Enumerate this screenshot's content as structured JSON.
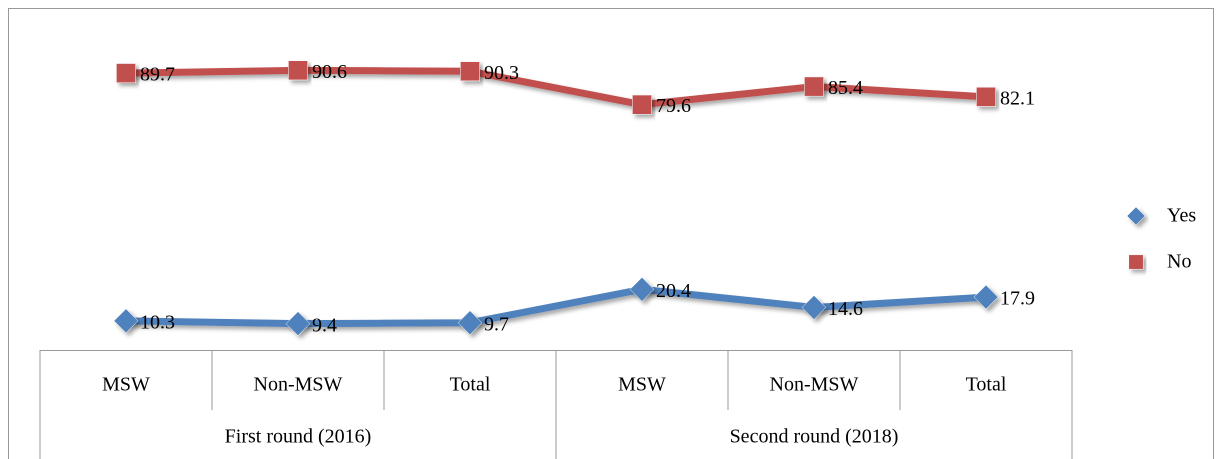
{
  "chart_data": {
    "type": "line",
    "categories": [
      "MSW",
      "Non-MSW",
      "Total",
      "MSW",
      "Non-MSW",
      "Total"
    ],
    "category_groups": [
      "First round (2016)",
      "Second round (2018)"
    ],
    "series": [
      {
        "name": "Yes",
        "color": "#4f81bd",
        "marker": "diamond",
        "values": [
          10.3,
          9.4,
          9.7,
          20.4,
          14.6,
          17.9
        ]
      },
      {
        "name": "No",
        "color": "#c0504d",
        "marker": "square",
        "values": [
          89.7,
          90.6,
          90.3,
          79.6,
          85.4,
          82.1
        ]
      }
    ],
    "ylim": [
      0,
      100
    ],
    "legend": "right"
  }
}
